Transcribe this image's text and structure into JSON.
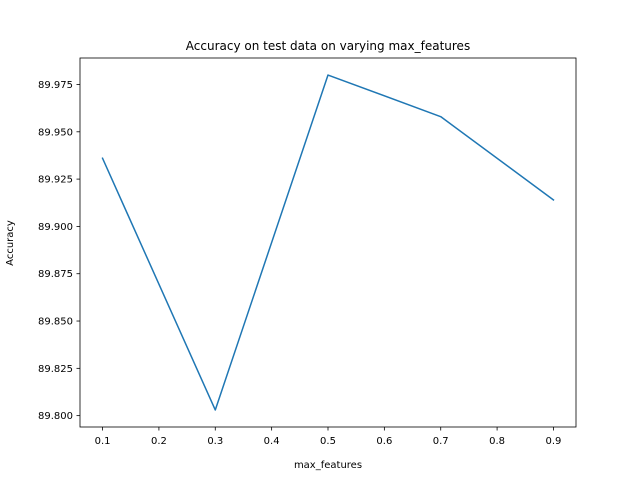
{
  "chart_data": {
    "type": "line",
    "title": "Accuracy on test data on varying max_features",
    "xlabel": "max_features",
    "ylabel": "Accuracy",
    "x": [
      0.1,
      0.3,
      0.5,
      0.7,
      0.9
    ],
    "series": [
      {
        "values": [
          89.936,
          89.803,
          89.98,
          89.958,
          89.914
        ],
        "color": "#1f77b4"
      }
    ],
    "xlim": [
      0.06,
      0.94
    ],
    "ylim": [
      89.794,
      89.989
    ],
    "xticks": [
      0.1,
      0.2,
      0.3,
      0.4,
      0.5,
      0.6,
      0.7,
      0.8,
      0.9
    ],
    "xtick_labels": [
      "0.1",
      "0.2",
      "0.3",
      "0.4",
      "0.5",
      "0.6",
      "0.7",
      "0.8",
      "0.9"
    ],
    "yticks": [
      89.8,
      89.825,
      89.85,
      89.875,
      89.9,
      89.925,
      89.95,
      89.975
    ],
    "ytick_labels": [
      "89.800",
      "89.825",
      "89.850",
      "89.875",
      "89.900",
      "89.925",
      "89.950",
      "89.975"
    ],
    "grid": false,
    "legend": false
  }
}
